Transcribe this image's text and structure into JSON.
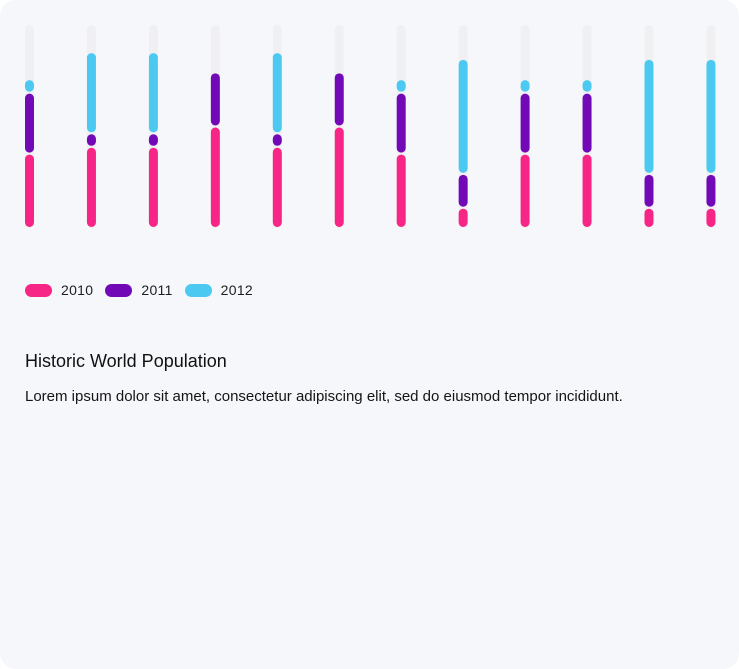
{
  "chart_data": {
    "type": "bar",
    "stacked": true,
    "categories": [
      "",
      "",
      "",
      "",
      "",
      "",
      "",
      "",
      "",
      "",
      "",
      ""
    ],
    "series": [
      {
        "name": "2010",
        "color": "#f72585",
        "values": [
          11,
          12,
          12,
          15,
          12,
          15,
          11,
          3,
          11,
          11,
          3,
          3
        ]
      },
      {
        "name": "2011",
        "color": "#7209b7",
        "values": [
          9,
          2,
          2,
          8,
          2,
          8,
          9,
          5,
          9,
          9,
          5,
          5
        ]
      },
      {
        "name": "2012",
        "color": "#4cc9f0",
        "values": [
          2,
          12,
          12,
          0,
          12,
          0,
          2,
          17,
          2,
          2,
          17,
          17
        ]
      }
    ],
    "track_color": "#f0f0f2",
    "ylim": [
      0,
      30
    ],
    "grid": false,
    "legend_position": "bottom-left"
  },
  "legend": {
    "items": [
      {
        "label": "2010",
        "color": "#f72585"
      },
      {
        "label": "2011",
        "color": "#7209b7"
      },
      {
        "label": "2012",
        "color": "#4cc9f0"
      }
    ]
  },
  "text": {
    "title": "Historic World Population",
    "description": "Lorem ipsum dolor sit amet, consectetur adipiscing elit, sed do eiusmod tempor incididunt."
  }
}
